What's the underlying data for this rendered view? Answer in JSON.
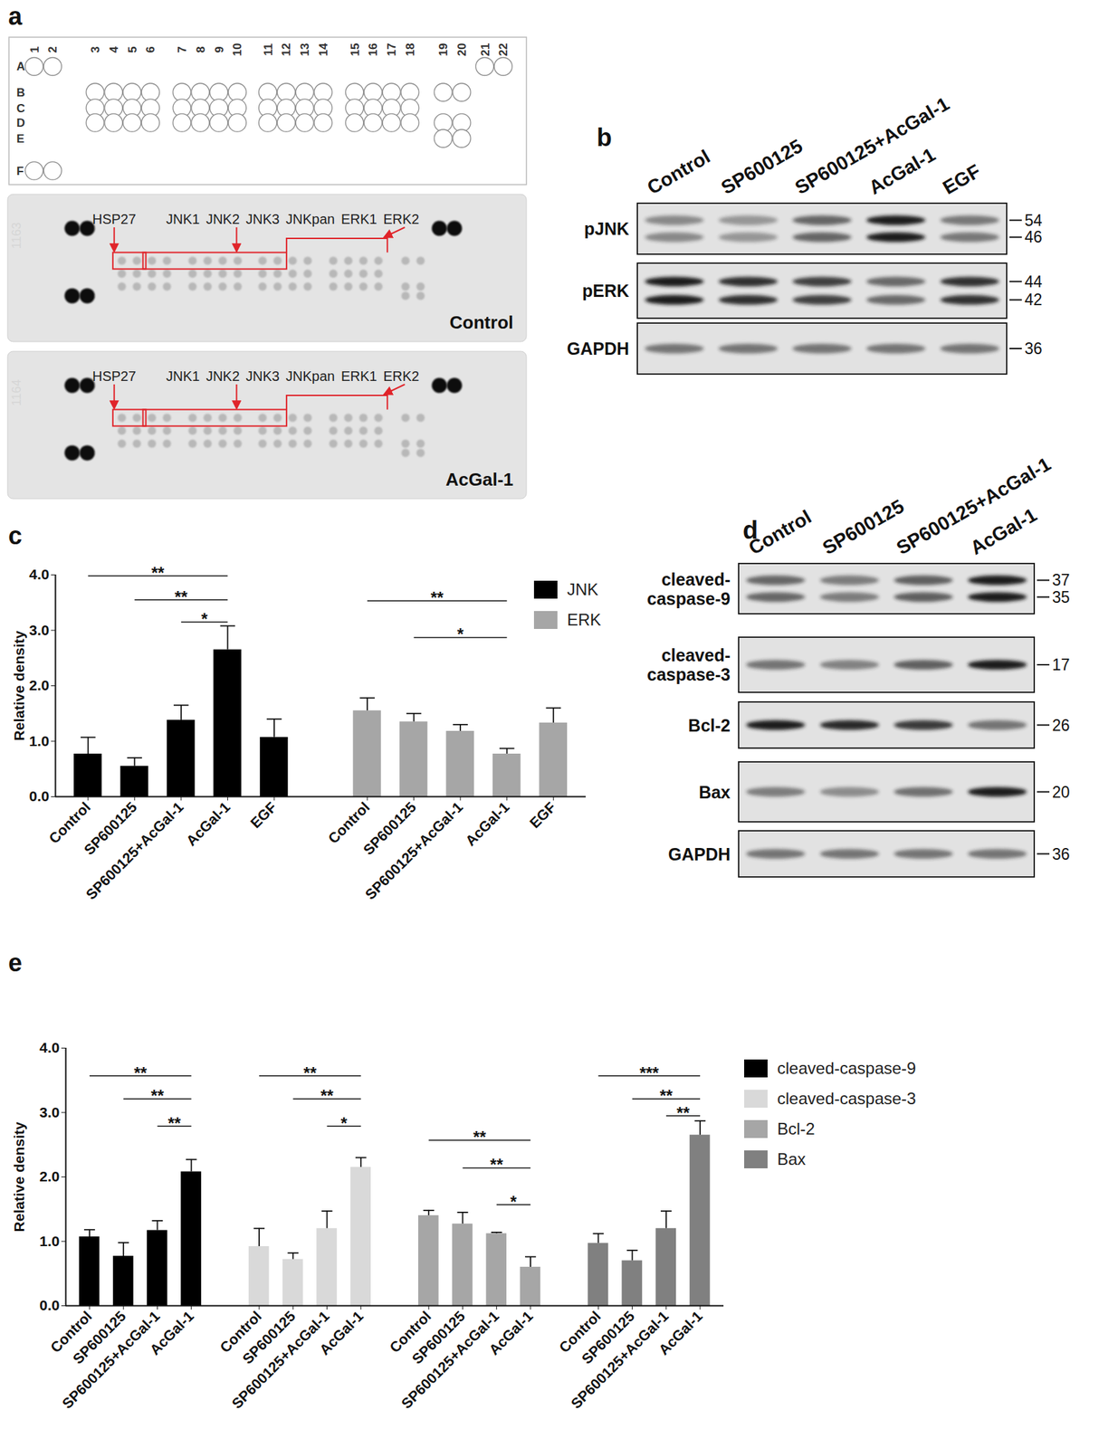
{
  "panels": {
    "a": {
      "label": "a",
      "array_map": {
        "rows": [
          "A",
          "B",
          "C",
          "D",
          "E",
          "F"
        ],
        "columns": [
          1,
          2,
          3,
          4,
          5,
          6,
          7,
          8,
          9,
          10,
          11,
          12,
          13,
          14,
          15,
          16,
          17,
          18,
          19,
          20,
          21,
          22
        ]
      },
      "membranes": [
        {
          "id": "1163",
          "name": "Control"
        },
        {
          "id": "1164",
          "name": "AcGal-1"
        }
      ],
      "annotations": [
        "HSP27",
        "JNK1",
        "JNK2",
        "JNK3",
        "JNKpan",
        "ERK1",
        "ERK2"
      ]
    },
    "b": {
      "label": "b",
      "lanes": [
        "Control",
        "SP600125",
        "SP600125+AcGal-1",
        "AcGal-1",
        "EGF"
      ],
      "rows": [
        {
          "name": "pJNK",
          "markers": [
            54,
            46
          ]
        },
        {
          "name": "pERK",
          "markers": [
            44,
            42
          ]
        },
        {
          "name": "GAPDH",
          "markers": [
            36
          ]
        }
      ]
    },
    "d": {
      "label": "d",
      "lanes": [
        "Control",
        "SP600125",
        "SP600125+AcGal-1",
        "AcGal-1"
      ],
      "rows": [
        {
          "name": "cleaved-caspase-9",
          "markers": [
            37,
            35
          ]
        },
        {
          "name": "cleaved-caspase-3",
          "markers": [
            17
          ]
        },
        {
          "name": "Bcl-2",
          "markers": [
            26
          ]
        },
        {
          "name": "Bax",
          "markers": [
            20
          ]
        },
        {
          "name": "GAPDH",
          "markers": [
            36
          ]
        }
      ]
    }
  },
  "chart_data": [
    {
      "type": "bar",
      "title": "c",
      "ylabel": "Relative density",
      "categories": [
        "Control",
        "SP600125",
        "SP600125+AcGal-1",
        "AcGal-1",
        "EGF"
      ],
      "series": [
        {
          "name": "JNK",
          "color": "#000000",
          "values": [
            0.77,
            0.55,
            1.38,
            2.65,
            1.07
          ],
          "errors": [
            0.3,
            0.15,
            0.27,
            0.43,
            0.33
          ]
        },
        {
          "name": "ERK",
          "color": "#a6a6a6",
          "values": [
            1.55,
            1.35,
            1.18,
            0.77,
            1.33
          ],
          "errors": [
            0.23,
            0.15,
            0.12,
            0.1,
            0.27
          ]
        }
      ],
      "ylim": [
        0,
        4
      ],
      "yticks": [
        0,
        1,
        2,
        3,
        4
      ],
      "legend": "top-right",
      "significance": [
        {
          "series": "JNK",
          "from": "Control",
          "to": "AcGal-1",
          "y": 3.98,
          "label": "**"
        },
        {
          "series": "JNK",
          "from": "SP600125",
          "to": "AcGal-1",
          "y": 3.55,
          "label": "**"
        },
        {
          "series": "JNK",
          "from": "SP600125+AcGal-1",
          "to": "AcGal-1",
          "y": 3.15,
          "label": "*"
        },
        {
          "series": "ERK",
          "from": "Control",
          "to": "AcGal-1",
          "y": 3.53,
          "label": "**"
        },
        {
          "series": "ERK",
          "from": "SP600125",
          "to": "AcGal-1",
          "y": 2.87,
          "label": "*"
        }
      ]
    },
    {
      "type": "bar",
      "title": "e",
      "ylabel": "Relative density",
      "categories": [
        "Control",
        "SP600125",
        "SP600125+AcGal-1",
        "AcGal-1"
      ],
      "series": [
        {
          "name": "cleaved-caspase-9",
          "color": "#000000",
          "values": [
            1.07,
            0.77,
            1.17,
            2.08
          ],
          "errors": [
            0.11,
            0.21,
            0.15,
            0.19
          ]
        },
        {
          "name": "cleaved-caspase-3",
          "color": "#d9d9d9",
          "values": [
            0.92,
            0.72,
            1.2,
            2.15
          ],
          "errors": [
            0.28,
            0.1,
            0.27,
            0.15
          ]
        },
        {
          "name": "Bcl-2",
          "color": "#a6a6a6",
          "values": [
            1.4,
            1.27,
            1.12,
            0.6
          ],
          "errors": [
            0.08,
            0.18,
            0.02,
            0.16
          ]
        },
        {
          "name": "Bax",
          "color": "#808080",
          "values": [
            0.97,
            0.7,
            1.2,
            2.65
          ],
          "errors": [
            0.15,
            0.16,
            0.27,
            0.22
          ]
        }
      ],
      "ylim": [
        0,
        4
      ],
      "yticks": [
        0,
        1,
        2,
        3,
        4
      ],
      "legend": "right",
      "significance": [
        {
          "series": "cleaved-caspase-9",
          "from": "Control",
          "to": "AcGal-1",
          "y": 3.57,
          "label": "**"
        },
        {
          "series": "cleaved-caspase-9",
          "from": "SP600125",
          "to": "AcGal-1",
          "y": 3.21,
          "label": "**"
        },
        {
          "series": "cleaved-caspase-9",
          "from": "SP600125+AcGal-1",
          "to": "AcGal-1",
          "y": 2.79,
          "label": "**"
        },
        {
          "series": "cleaved-caspase-3",
          "from": "Control",
          "to": "AcGal-1",
          "y": 3.57,
          "label": "**"
        },
        {
          "series": "cleaved-caspase-3",
          "from": "SP600125",
          "to": "AcGal-1",
          "y": 3.21,
          "label": "**"
        },
        {
          "series": "cleaved-caspase-3",
          "from": "SP600125+AcGal-1",
          "to": "AcGal-1",
          "y": 2.79,
          "label": "*"
        },
        {
          "series": "Bcl-2",
          "from": "Control",
          "to": "AcGal-1",
          "y": 2.57,
          "label": "**"
        },
        {
          "series": "Bcl-2",
          "from": "SP600125",
          "to": "AcGal-1",
          "y": 2.14,
          "label": "**"
        },
        {
          "series": "Bcl-2",
          "from": "SP600125+AcGal-1",
          "to": "AcGal-1",
          "y": 1.57,
          "label": "*"
        },
        {
          "series": "Bax",
          "from": "Control",
          "to": "AcGal-1",
          "y": 3.57,
          "label": "***"
        },
        {
          "series": "Bax",
          "from": "SP600125",
          "to": "AcGal-1",
          "y": 3.21,
          "label": "**"
        },
        {
          "series": "Bax",
          "from": "SP600125+AcGal-1",
          "to": "AcGal-1",
          "y": 2.95,
          "label": "**"
        }
      ]
    }
  ]
}
